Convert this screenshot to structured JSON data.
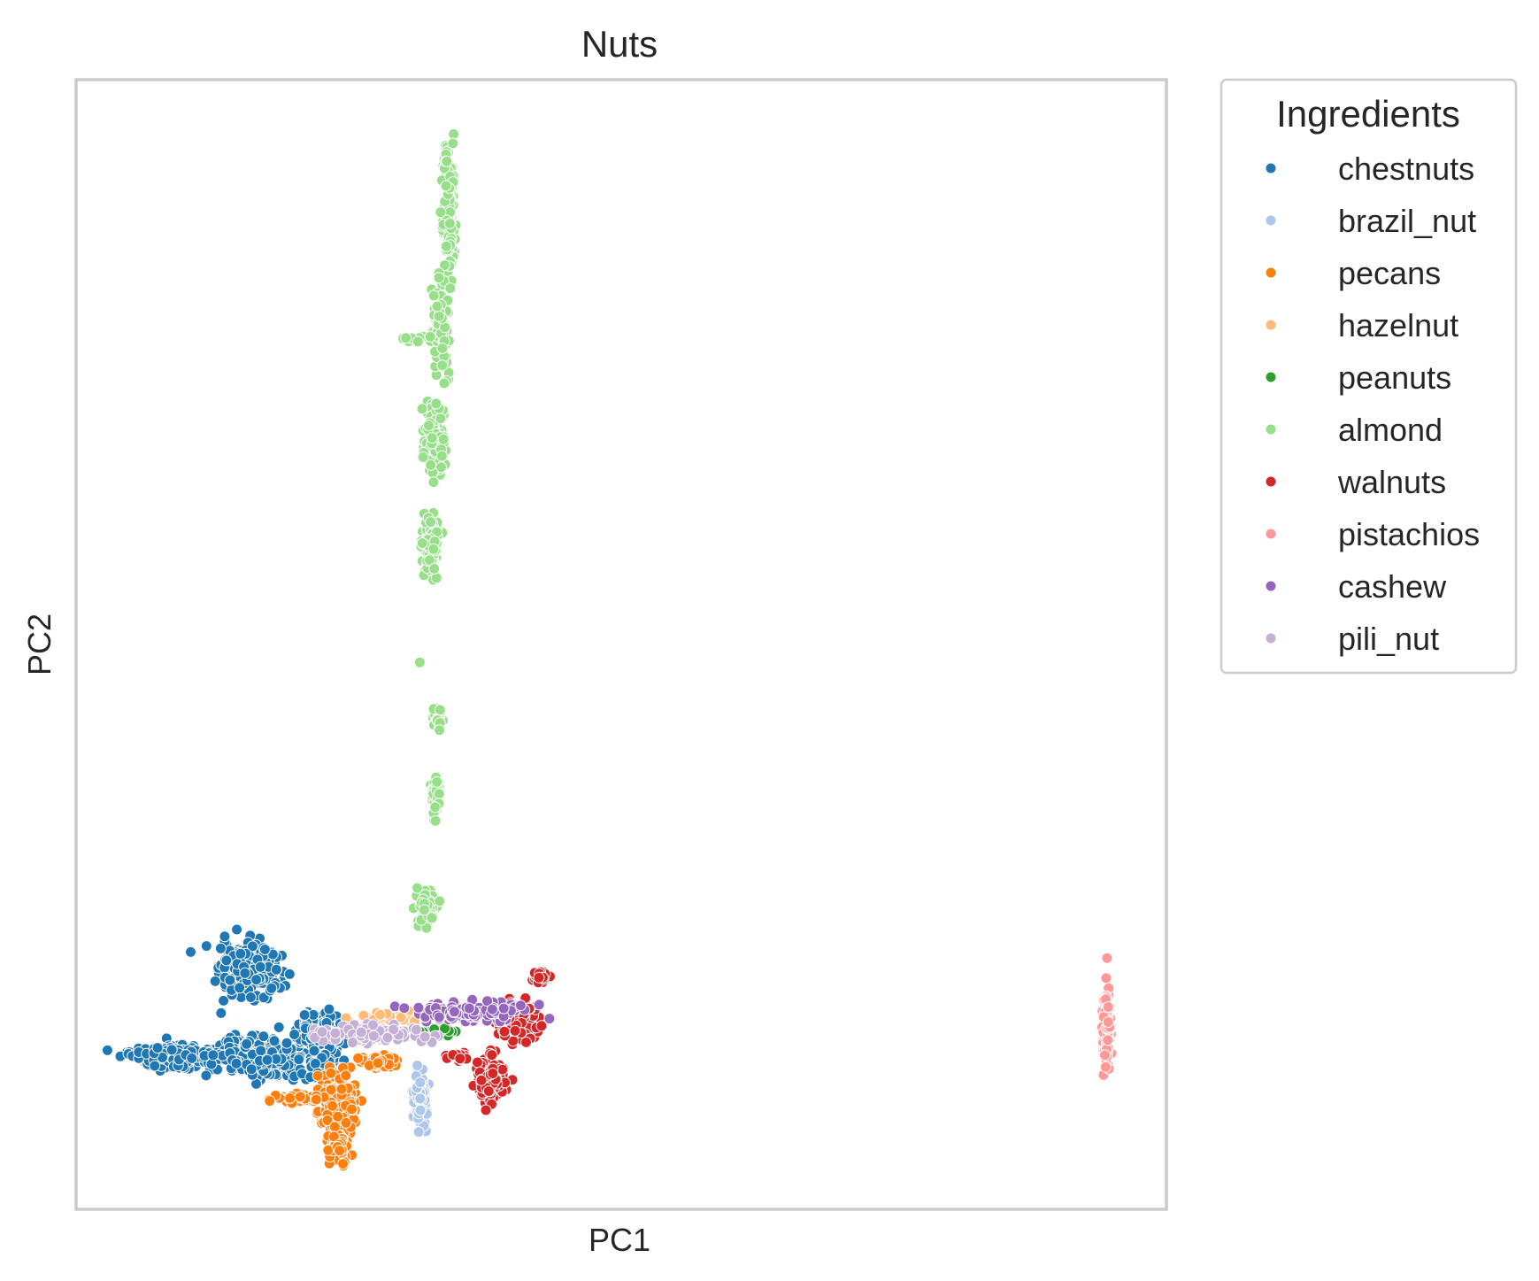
{
  "chart_data": {
    "type": "scatter",
    "title": "Nuts",
    "xlabel": "PC1",
    "ylabel": "PC2",
    "xlim": [
      0,
      100
    ],
    "ylim": [
      0,
      100
    ],
    "grid": false,
    "ticks_visible": false,
    "legend": {
      "title": "Ingredients",
      "placement": "outside-upper-right"
    },
    "point_edge_color": "#ffffff",
    "series": [
      {
        "name": "chestnuts",
        "color": "#1f77b4",
        "clusters": [
          {
            "cx": 16,
            "cy": 21,
            "sx": 2.5,
            "sy": 2.2,
            "n": 260
          },
          {
            "cx": 9,
            "cy": 13.5,
            "sx": 3.5,
            "sy": 0.9,
            "n": 230
          },
          {
            "cx": 17,
            "cy": 13.5,
            "sx": 4.0,
            "sy": 1.5,
            "n": 320
          },
          {
            "cx": 22.5,
            "cy": 16,
            "sx": 1.6,
            "sy": 1.5,
            "n": 120
          },
          {
            "cx": 23,
            "cy": 12.5,
            "sx": 1.5,
            "sy": 1.2,
            "n": 80
          }
        ]
      },
      {
        "name": "brazil_nut",
        "color": "#aec7e8",
        "clusters": [
          {
            "cx": 31.5,
            "cy": 10,
            "sx": 0.5,
            "sy": 2.2,
            "n": 110
          }
        ]
      },
      {
        "name": "pecans",
        "color": "#ff7f0e",
        "clusters": [
          {
            "cx": 24,
            "cy": 9.5,
            "sx": 1.4,
            "sy": 2.6,
            "n": 200
          },
          {
            "cx": 24,
            "cy": 5.5,
            "sx": 0.7,
            "sy": 1.4,
            "n": 90
          },
          {
            "cx": 20,
            "cy": 9.8,
            "sx": 2.0,
            "sy": 0.4,
            "n": 50
          },
          {
            "cx": 28,
            "cy": 13,
            "sx": 1.8,
            "sy": 0.6,
            "n": 50
          }
        ]
      },
      {
        "name": "hazelnut",
        "color": "#ffbb78",
        "clusters": [
          {
            "cx": 29,
            "cy": 17,
            "sx": 2.5,
            "sy": 0.5,
            "n": 70
          }
        ]
      },
      {
        "name": "peanuts",
        "color": "#2ca02c",
        "clusters": [
          {
            "cx": 33,
            "cy": 15.8,
            "sx": 2.0,
            "sy": 0.3,
            "n": 25
          }
        ]
      },
      {
        "name": "almond",
        "color": "#98df8a",
        "clusters": [
          {
            "cx": 34.2,
            "cy": 89,
            "sx": 0.5,
            "sy": 5.5,
            "n": 140
          },
          {
            "cx": 33.5,
            "cy": 78,
            "sx": 0.6,
            "sy": 3.5,
            "n": 90
          },
          {
            "cx": 32.8,
            "cy": 68.5,
            "sx": 0.8,
            "sy": 2.8,
            "n": 130
          },
          {
            "cx": 32.5,
            "cy": 58.5,
            "sx": 0.6,
            "sy": 2.5,
            "n": 120
          },
          {
            "cx": 33.2,
            "cy": 43.5,
            "sx": 0.4,
            "sy": 1.0,
            "n": 40
          },
          {
            "cx": 33.0,
            "cy": 36.5,
            "sx": 0.4,
            "sy": 1.5,
            "n": 40
          },
          {
            "cx": 32.2,
            "cy": 26.5,
            "sx": 0.9,
            "sy": 1.5,
            "n": 60
          },
          {
            "cx": 31,
            "cy": 77,
            "sx": 1.3,
            "sy": 0.4,
            "n": 8
          },
          {
            "cx": 31.5,
            "cy": 48.5,
            "sx": 0.2,
            "sy": 0.2,
            "n": 1
          }
        ]
      },
      {
        "name": "walnuts",
        "color": "#d62728",
        "clusters": [
          {
            "cx": 38,
            "cy": 11.5,
            "sx": 1.2,
            "sy": 1.6,
            "n": 140
          },
          {
            "cx": 40.5,
            "cy": 16.5,
            "sx": 1.8,
            "sy": 1.5,
            "n": 110
          },
          {
            "cx": 42.5,
            "cy": 20.5,
            "sx": 0.6,
            "sy": 0.6,
            "n": 30
          },
          {
            "cx": 35,
            "cy": 13.5,
            "sx": 1.0,
            "sy": 0.4,
            "n": 15
          }
        ]
      },
      {
        "name": "pistachios",
        "color": "#ff9896",
        "clusters": [
          {
            "cx": 94.5,
            "cy": 16,
            "sx": 0.3,
            "sy": 3.0,
            "n": 160
          }
        ]
      },
      {
        "name": "cashew",
        "color": "#9467bd",
        "clusters": [
          {
            "cx": 36,
            "cy": 17.5,
            "sx": 4.0,
            "sy": 0.6,
            "n": 180
          }
        ]
      },
      {
        "name": "pili_nut",
        "color": "#c5b0d5",
        "clusters": [
          {
            "cx": 27,
            "cy": 15.5,
            "sx": 4.0,
            "sy": 0.7,
            "n": 150
          }
        ]
      }
    ]
  }
}
